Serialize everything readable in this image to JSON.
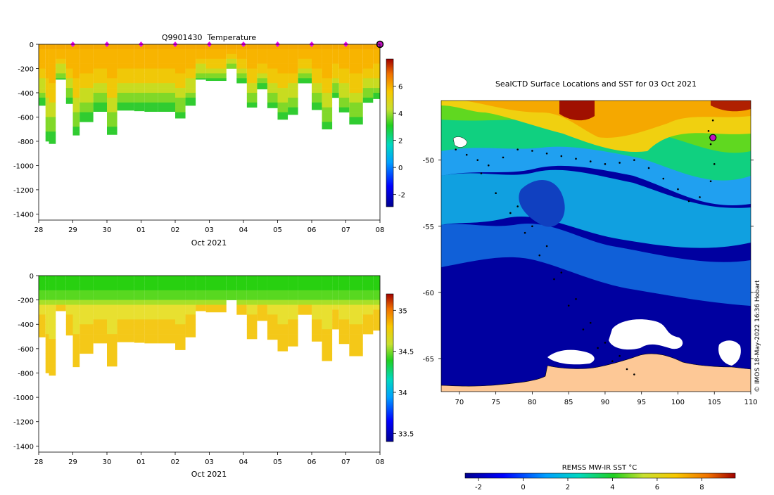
{
  "chart_data": [
    {
      "type": "heatmap",
      "title": "Q9901430  Temperature",
      "xlabel": "Oct 2021",
      "ylabel": "",
      "x_ticks": [
        "28",
        "29",
        "30",
        "01",
        "02",
        "03",
        "04",
        "05",
        "06",
        "07",
        "08"
      ],
      "x_tick_values": [
        0,
        1,
        2,
        3,
        4,
        5,
        6,
        7,
        8,
        9,
        10
      ],
      "y_ticks": [
        0,
        -200,
        -400,
        -600,
        -800,
        -1000,
        -1200,
        -1400
      ],
      "ylim": [
        -1450,
        0
      ],
      "colorbar": {
        "ticks": [
          -2,
          0,
          2,
          4,
          6
        ],
        "range": [
          -2.9,
          8
        ]
      },
      "profile_markers_x": [
        1,
        2,
        3,
        4,
        5,
        6,
        7,
        8,
        9
      ],
      "last_marker_x": 10,
      "profiles": [
        {
          "x": 0.0,
          "depth": -505
        },
        {
          "x": 0.2,
          "depth": -800
        },
        {
          "x": 0.3,
          "depth": -820
        },
        {
          "x": 0.5,
          "depth": -290
        },
        {
          "x": 0.8,
          "depth": -490
        },
        {
          "x": 1.0,
          "depth": -750
        },
        {
          "x": 1.2,
          "depth": -640
        },
        {
          "x": 1.6,
          "depth": -555
        },
        {
          "x": 2.0,
          "depth": -745
        },
        {
          "x": 2.3,
          "depth": -545
        },
        {
          "x": 2.8,
          "depth": -550
        },
        {
          "x": 3.1,
          "depth": -555
        },
        {
          "x": 3.5,
          "depth": -555
        },
        {
          "x": 4.0,
          "depth": -610
        },
        {
          "x": 4.3,
          "depth": -505
        },
        {
          "x": 4.6,
          "depth": -290
        },
        {
          "x": 4.9,
          "depth": -300
        },
        {
          "x": 5.5,
          "depth": -200
        },
        {
          "x": 5.8,
          "depth": -320
        },
        {
          "x": 6.1,
          "depth": -520
        },
        {
          "x": 6.4,
          "depth": -370
        },
        {
          "x": 6.7,
          "depth": -525
        },
        {
          "x": 7.0,
          "depth": -620
        },
        {
          "x": 7.3,
          "depth": -580
        },
        {
          "x": 7.6,
          "depth": -320
        },
        {
          "x": 8.0,
          "depth": -540
        },
        {
          "x": 8.3,
          "depth": -700
        },
        {
          "x": 8.6,
          "depth": -440
        },
        {
          "x": 8.8,
          "depth": -560
        },
        {
          "x": 9.1,
          "depth": -660
        },
        {
          "x": 9.5,
          "depth": -480
        },
        {
          "x": 9.8,
          "depth": -450
        }
      ]
    },
    {
      "type": "heatmap",
      "title": "",
      "xlabel": "Oct 2021",
      "ylabel": "",
      "x_ticks": [
        "28",
        "29",
        "30",
        "01",
        "02",
        "03",
        "04",
        "05",
        "06",
        "07",
        "08"
      ],
      "x_tick_values": [
        0,
        1,
        2,
        3,
        4,
        5,
        6,
        7,
        8,
        9,
        10
      ],
      "y_ticks": [
        0,
        -200,
        -400,
        -600,
        -800,
        -1000,
        -1200,
        -1400
      ],
      "ylim": [
        -1450,
        0
      ],
      "colorbar": {
        "ticks": [
          33.5,
          34,
          34.5,
          35
        ],
        "range": [
          33.4,
          35.2
        ]
      },
      "profiles_shared_with": "Q9901430  Temperature"
    },
    {
      "type": "heatmap",
      "title": "SealCTD Surface Locations and SST for 03 Oct 2021",
      "xlabel": "",
      "ylabel": "",
      "x_ticks": [
        70,
        75,
        80,
        85,
        90,
        95,
        100,
        105,
        110
      ],
      "xlim": [
        67.5,
        110
      ],
      "y_ticks": [
        -50,
        -55,
        -60,
        -65
      ],
      "ylim": [
        -67.5,
        -45.5
      ],
      "colorbar": {
        "label": "REMSS MW-IR SST °C",
        "ticks": [
          -2,
          0,
          2,
          4,
          6,
          8
        ],
        "range": [
          -2.6,
          9.5
        ]
      },
      "track_points": [
        [
          69.5,
          -49.2
        ],
        [
          71,
          -49.6
        ],
        [
          72.5,
          -50
        ],
        [
          74,
          -50.4
        ],
        [
          76,
          -49.8
        ],
        [
          78,
          -49.2
        ],
        [
          80,
          -49.3
        ],
        [
          82,
          -49.5
        ],
        [
          84,
          -49.7
        ],
        [
          86,
          -49.9
        ],
        [
          88,
          -50.1
        ],
        [
          90,
          -50.3
        ],
        [
          92,
          -50.2
        ],
        [
          94,
          -50.0
        ],
        [
          96,
          -50.6
        ],
        [
          98,
          -51.4
        ],
        [
          100,
          -52.2
        ],
        [
          101.5,
          -53.1
        ],
        [
          103,
          -52.8
        ],
        [
          104.5,
          -51.6
        ],
        [
          105,
          -50.3
        ],
        [
          104.5,
          -48.8
        ],
        [
          104.2,
          -47.8
        ],
        [
          104.8,
          -47.0
        ],
        [
          73,
          -51
        ],
        [
          75,
          -52.5
        ],
        [
          77,
          -54
        ],
        [
          79,
          -55.5
        ],
        [
          81,
          -57.2
        ],
        [
          83,
          -59
        ],
        [
          85,
          -61
        ],
        [
          87,
          -62.8
        ],
        [
          89,
          -64.2
        ],
        [
          91,
          -65.2
        ],
        [
          93,
          -65.8
        ],
        [
          94,
          -66.2
        ],
        [
          78,
          -53.5
        ],
        [
          80,
          -55
        ],
        [
          82,
          -56.5
        ],
        [
          84,
          -58.5
        ],
        [
          86,
          -60.5
        ],
        [
          88,
          -62.3
        ],
        [
          90,
          -63.8
        ],
        [
          92,
          -64.8
        ]
      ],
      "current_location": [
        104.8,
        -48.3
      ]
    }
  ],
  "colors": {
    "land": "#fdc896",
    "ice": "#ffffff",
    "marker": "#ee00ee",
    "track": "#000000"
  },
  "watermark": "© IMOS 18-May-2022 16:36 Hobart"
}
